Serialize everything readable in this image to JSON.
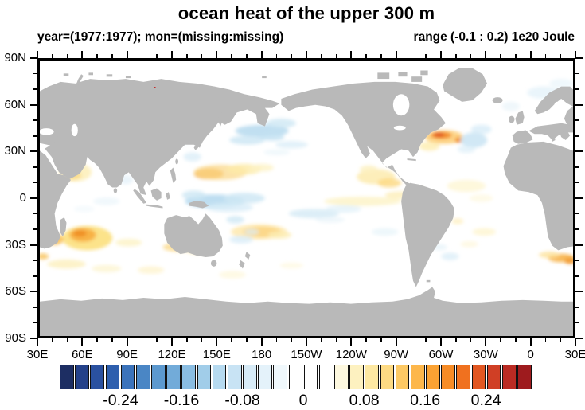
{
  "title": "ocean heat of the upper 300 m",
  "subtitle_left": "year=(1977:1977); mon=(missing:missing)",
  "subtitle_right": "range (-0.1 : 0.2) 1e20 Joule",
  "x_axis": {
    "labels": [
      "30E",
      "60E",
      "90E",
      "120E",
      "150E",
      "180",
      "150W",
      "120W",
      "90W",
      "60W",
      "30W",
      "0",
      "30E"
    ],
    "minors_between": 2
  },
  "y_axis": {
    "labels": [
      "90N",
      "60N",
      "30N",
      "0",
      "30S",
      "60S",
      "90S"
    ],
    "minors_between": 2
  },
  "colorbar": {
    "n_boxes": 31,
    "colors": [
      "#1d2e63",
      "#24418a",
      "#2a51a0",
      "#2e5fae",
      "#3b73bb",
      "#4a86c5",
      "#5c99cf",
      "#72abd9",
      "#8abde2",
      "#a1cde9",
      "#b6daf0",
      "#c8e3f4",
      "#d7ebf7",
      "#e4f2fa",
      "#f0f8fc",
      "#ffffff",
      "#ffffff",
      "#ffffff",
      "#fdf8df",
      "#fdf1c0",
      "#fde8a2",
      "#fdda83",
      "#fdc964",
      "#fdb74b",
      "#fba233",
      "#f78c26",
      "#f0711f",
      "#e25722",
      "#d03f25",
      "#ba2b23",
      "#9e1b1e"
    ],
    "ticks": [
      {
        "label": "-0.24",
        "boundary": 4
      },
      {
        "label": "-0.16",
        "boundary": 8
      },
      {
        "label": "-0.08",
        "boundary": 12
      },
      {
        "label": "0",
        "boundary": 16
      },
      {
        "label": "0.08",
        "boundary": 20
      },
      {
        "label": "0.16",
        "boundary": 24
      },
      {
        "label": "0.24",
        "boundary": 28
      }
    ]
  },
  "chart_data": {
    "type": "heatmap",
    "title": "ocean heat of the upper 300 m",
    "subtitle_left": "year=(1977:1977); mon=(missing:missing)",
    "subtitle_right": "range (-0.1 : 0.2) 1e20 Joule",
    "units": "1e20 Joule",
    "projection": "cylindrical equidistant world map, longitude 30E eastward around to 30E, latitude 90N to 90S",
    "x_ticks": [
      "30E",
      "60E",
      "90E",
      "120E",
      "150E",
      "180",
      "150W",
      "120W",
      "90W",
      "60W",
      "30W",
      "0",
      "30E"
    ],
    "y_ticks": [
      "90N",
      "60N",
      "30N",
      "0",
      "30S",
      "60S",
      "90S"
    ],
    "value_range_shown": [
      -0.1,
      0.2
    ],
    "colorbar": {
      "min": -0.32,
      "max": 0.3,
      "step": 0.02,
      "labeled_values": [
        -0.24,
        -0.16,
        -0.08,
        0,
        0.08,
        0.16,
        0.24
      ]
    },
    "land_color": "#b9b9b9",
    "ocean_base_color": "#ffffff",
    "anomaly_regions": [
      {
        "region": "southwest Indian Ocean (~60E, 25S)",
        "sign": "warm",
        "approx_value": 0.12
      },
      {
        "region": "Arabian Sea (~55E, 15N)",
        "sign": "warm",
        "approx_value": 0.04
      },
      {
        "region": "western North Pacific (~145E, 17N)",
        "sign": "warm",
        "approx_value": 0.1
      },
      {
        "region": "northwest Atlantic / Gulf Stream (~55W, 40N)",
        "sign": "warm",
        "approx_value": 0.2
      },
      {
        "region": "eastern Pacific off Mexico (~105W, 15N)",
        "sign": "warm",
        "approx_value": 0.04
      },
      {
        "region": "equatorial eastern Pacific band (~140W-80W, 0-5S)",
        "sign": "warm",
        "approx_value": 0.03
      },
      {
        "region": "South Pacific east of Australia (~175E, 23S)",
        "sign": "warm",
        "approx_value": 0.08
      },
      {
        "region": "Agulhas region south of Africa (~20E, 40S)",
        "sign": "warm",
        "approx_value": 0.1
      },
      {
        "region": "central North Pacific (~180, 35-45N)",
        "sign": "cool",
        "approx_value": -0.05
      },
      {
        "region": "equatorial west Pacific / Indonesia",
        "sign": "cool",
        "approx_value": -0.05
      },
      {
        "region": "central North Atlantic (~30W, 40N)",
        "sign": "cool",
        "approx_value": -0.05
      },
      {
        "region": "South Pacific (~150W, 12S)",
        "sign": "cool",
        "approx_value": -0.03
      },
      {
        "region": "Norwegian / Barents Sea",
        "sign": "cool",
        "approx_value": -0.02
      }
    ]
  }
}
